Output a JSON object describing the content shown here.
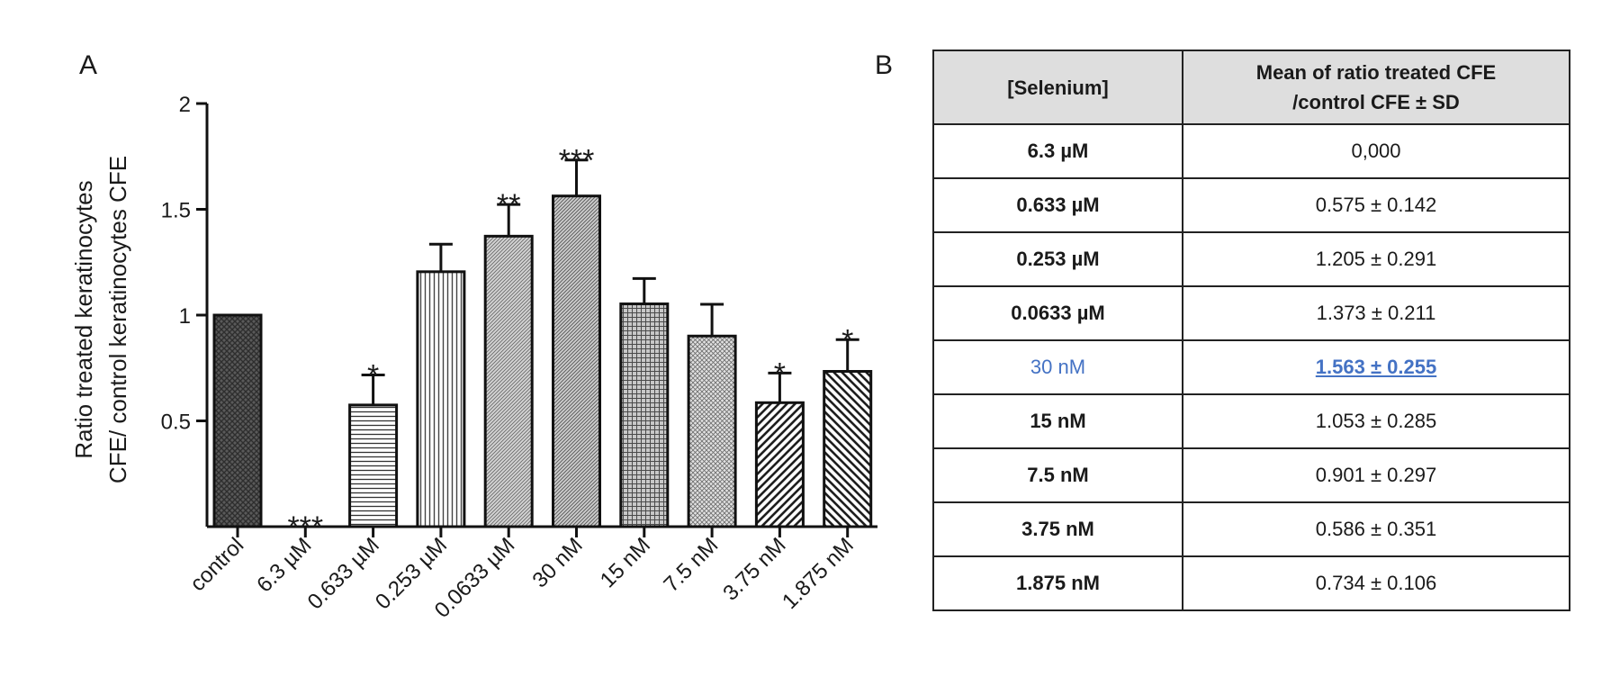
{
  "panel_a_label": "A",
  "panel_b_label": "B",
  "chart_data": {
    "type": "bar",
    "title": "",
    "ylabel_line1": "Ratio treated keratinocytes",
    "ylabel_line2": "CFE/ control keratinocytes CFE",
    "ylim": [
      0,
      2
    ],
    "yticks": [
      "2",
      "1.5",
      "1",
      "0.5"
    ],
    "ytick_values": [
      2,
      1.5,
      1,
      0.5
    ],
    "grid": false,
    "categories": [
      "control",
      "6.3 µM",
      "0.633 µM",
      "0.253 µM",
      "0.0633 µM",
      "30  nM",
      "15 nM",
      "7.5 nM",
      "3.75 nM",
      "1.875 nM"
    ],
    "values": [
      1.0,
      0.0,
      0.575,
      1.205,
      1.373,
      1.563,
      1.053,
      0.901,
      0.586,
      0.734
    ],
    "errors": [
      0,
      0,
      0.142,
      0.13,
      0.15,
      0.17,
      0.12,
      0.15,
      0.14,
      0.15
    ],
    "significance": [
      "",
      "***",
      "*",
      "",
      "**",
      "***",
      "",
      "",
      "*",
      "*"
    ],
    "patterns": [
      "dark-crosshatch",
      "none",
      "horizontal",
      "vertical",
      "diag-fine",
      "diag-fine-dense",
      "grid",
      "dots",
      "diag-bold",
      "diag-bold-reverse"
    ]
  },
  "table": {
    "headers": [
      "[Selenium]",
      "Mean of ratio treated CFE",
      "/control CFE ± SD"
    ],
    "rows": [
      {
        "conc": "6.3 µM",
        "mean": "0,000"
      },
      {
        "conc": "0.633 µM",
        "mean": "0.575 ± 0.142"
      },
      {
        "conc": "0.253 µM",
        "mean": "1.205 ± 0.291"
      },
      {
        "conc": "0.0633 µM",
        "mean": "1.373 ± 0.211"
      },
      {
        "conc": "30 nM",
        "mean": "1.563 ± 0.255"
      },
      {
        "conc": "15 nM",
        "mean": "1.053 ±  0.285"
      },
      {
        "conc": "7.5 nM",
        "mean": "0.901 ± 0.297"
      },
      {
        "conc": "3.75 nM",
        "mean": "0.586 ± 0.351"
      },
      {
        "conc": "1.875 nM",
        "mean": "0.734 ± 0.106"
      }
    ],
    "highlight_color": "#4472c4"
  }
}
